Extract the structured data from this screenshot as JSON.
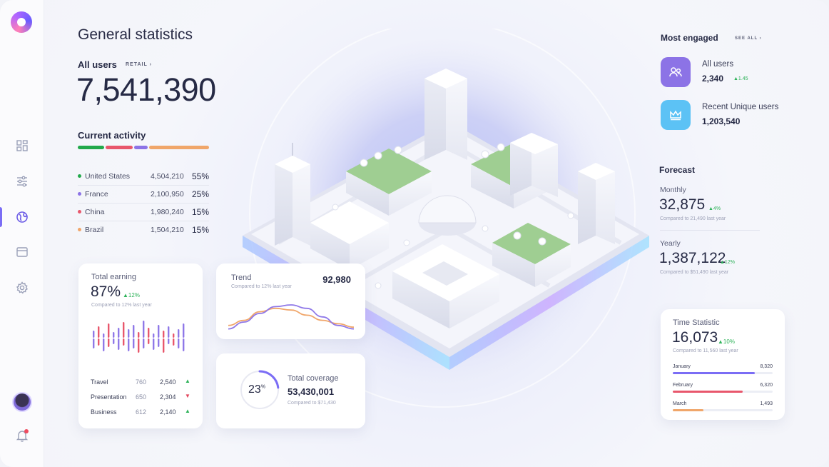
{
  "header": {
    "title": "General statistics"
  },
  "users": {
    "label": "All users",
    "link": "RETAIL  ›",
    "total": "7,541,390"
  },
  "activity": {
    "label": "Current activity",
    "segments": [
      {
        "color": "#22a94b",
        "share": 0.21
      },
      {
        "color": "#e8576c",
        "share": 0.21
      },
      {
        "color": "#8c73e6",
        "share": 0.11
      },
      {
        "color": "#f0a66a",
        "share": 0.47
      }
    ],
    "countries": [
      {
        "name": "United States",
        "value": "4,504,210",
        "pct": "55%",
        "color": "#22a94b"
      },
      {
        "name": "France",
        "value": "2,100,950",
        "pct": "25%",
        "color": "#8c73e6"
      },
      {
        "name": "China",
        "value": "1,980,240",
        "pct": "15%",
        "color": "#e8576c"
      },
      {
        "name": "Brazil",
        "value": "1,504,210",
        "pct": "15%",
        "color": "#f0a66a"
      }
    ]
  },
  "earning": {
    "title": "Total earning",
    "pct": "87%",
    "delta": "▲12%",
    "sub": "Compared to 12% last year",
    "bars": [
      {
        "up": 10,
        "down": 14,
        "color": "#8f78e8"
      },
      {
        "up": 16,
        "down": 10,
        "color": "#e8576c"
      },
      {
        "up": 6,
        "down": 18,
        "color": "#8f78e8"
      },
      {
        "up": 20,
        "down": 12,
        "color": "#e8576c"
      },
      {
        "up": 8,
        "down": 8,
        "color": "#8f78e8"
      },
      {
        "up": 14,
        "down": 16,
        "color": "#8f78e8"
      },
      {
        "up": 22,
        "down": 10,
        "color": "#e8576c"
      },
      {
        "up": 12,
        "down": 18,
        "color": "#8f78e8"
      },
      {
        "up": 18,
        "down": 14,
        "color": "#8f78e8"
      },
      {
        "up": 8,
        "down": 20,
        "color": "#e8576c"
      },
      {
        "up": 24,
        "down": 14,
        "color": "#8f78e8"
      },
      {
        "up": 14,
        "down": 8,
        "color": "#e8576c"
      },
      {
        "up": 6,
        "down": 16,
        "color": "#8f78e8"
      },
      {
        "up": 18,
        "down": 12,
        "color": "#8f78e8"
      },
      {
        "up": 10,
        "down": 20,
        "color": "#e8576c"
      },
      {
        "up": 16,
        "down": 8,
        "color": "#8f78e8"
      },
      {
        "up": 6,
        "down": 10,
        "color": "#e8576c"
      },
      {
        "up": 12,
        "down": 14,
        "color": "#8f78e8"
      },
      {
        "up": 20,
        "down": 18,
        "color": "#8f78e8"
      }
    ],
    "rows": [
      {
        "name": "Travel",
        "a": "760",
        "b": "2,540",
        "trend": "▲",
        "dir": "up"
      },
      {
        "name": "Presentation",
        "a": "650",
        "b": "2,304",
        "trend": "▼",
        "dir": "down"
      },
      {
        "name": "Business",
        "a": "612",
        "b": "2,140",
        "trend": "▲",
        "dir": "up"
      }
    ]
  },
  "trend": {
    "title": "Trend",
    "sub": "Compared to 12% last year",
    "value": "92,980",
    "series": [
      {
        "color": "#f0a66a",
        "values": [
          6,
          12,
          22,
          26,
          24,
          18,
          12,
          8,
          4
        ]
      },
      {
        "color": "#8f78e8",
        "values": [
          2,
          10,
          20,
          28,
          30,
          26,
          16,
          6,
          2
        ]
      }
    ]
  },
  "coverage": {
    "pct": "23",
    "pct_symbol": "%",
    "fraction": 0.23,
    "title": "Total coverage",
    "value": "53,430,001",
    "sub": "Compared to $71,430"
  },
  "engaged": {
    "title": "Most engaged",
    "see_all": "SEE ALL  ›",
    "items": [
      {
        "name": "All users",
        "value": "2,340",
        "delta": "▲1.45",
        "color": "#8c73e6"
      },
      {
        "name": "Recent Unique users",
        "value": "1,203,540",
        "delta": "",
        "color": "#5cc2f5"
      }
    ]
  },
  "forecast": {
    "title": "Forecast",
    "monthly": {
      "label": "Monthly",
      "value": "32,875",
      "delta": "▲4%",
      "sub": "Compared to 21,490 last year"
    },
    "yearly": {
      "label": "Yearly",
      "value": "1,387,122",
      "delta": "▲12%",
      "sub": "Compared to $51,490 last year"
    }
  },
  "time_stat": {
    "title": "Time Statistic",
    "value": "16,073",
    "delta": "▲10%",
    "sub": "Compared to 11,560 last year",
    "months": [
      {
        "name": "January",
        "value": "8,320",
        "fraction": 0.82,
        "color": "#7b6df5"
      },
      {
        "name": "February",
        "value": "6,320",
        "fraction": 0.7,
        "color": "#e8576c"
      },
      {
        "name": "March",
        "value": "1,493",
        "fraction": 0.31,
        "color": "#f0a66a"
      }
    ]
  }
}
